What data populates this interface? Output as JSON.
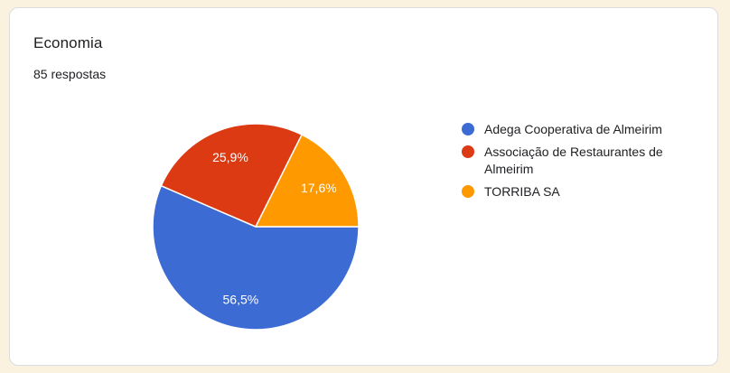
{
  "page": {
    "background_color": "#FAF1DE"
  },
  "card": {
    "title": "Economia",
    "subtitle": "85 respostas",
    "background_color": "#FFFFFF",
    "border_color": "#DADCE0"
  },
  "chart_data": {
    "type": "pie",
    "title": "Economia",
    "subtitle": "85 respostas",
    "categories": [
      "Adega Cooperativa de Almeirim",
      "Associação de Restaurantes de Almeirim",
      "TORRIBA SA"
    ],
    "values": [
      56.5,
      25.9,
      17.6
    ],
    "value_labels": [
      "56,5%",
      "25,9%",
      "17,6%"
    ],
    "colors": [
      "#3B6BD3",
      "#DB3A13",
      "#FF9900"
    ],
    "stroke_color": "#FFFFFF",
    "label_color": "#FFFFFF",
    "start_angle_deg": 0,
    "direction": "clockwise",
    "legend_position": "right",
    "total_responses": "85 respostas"
  }
}
